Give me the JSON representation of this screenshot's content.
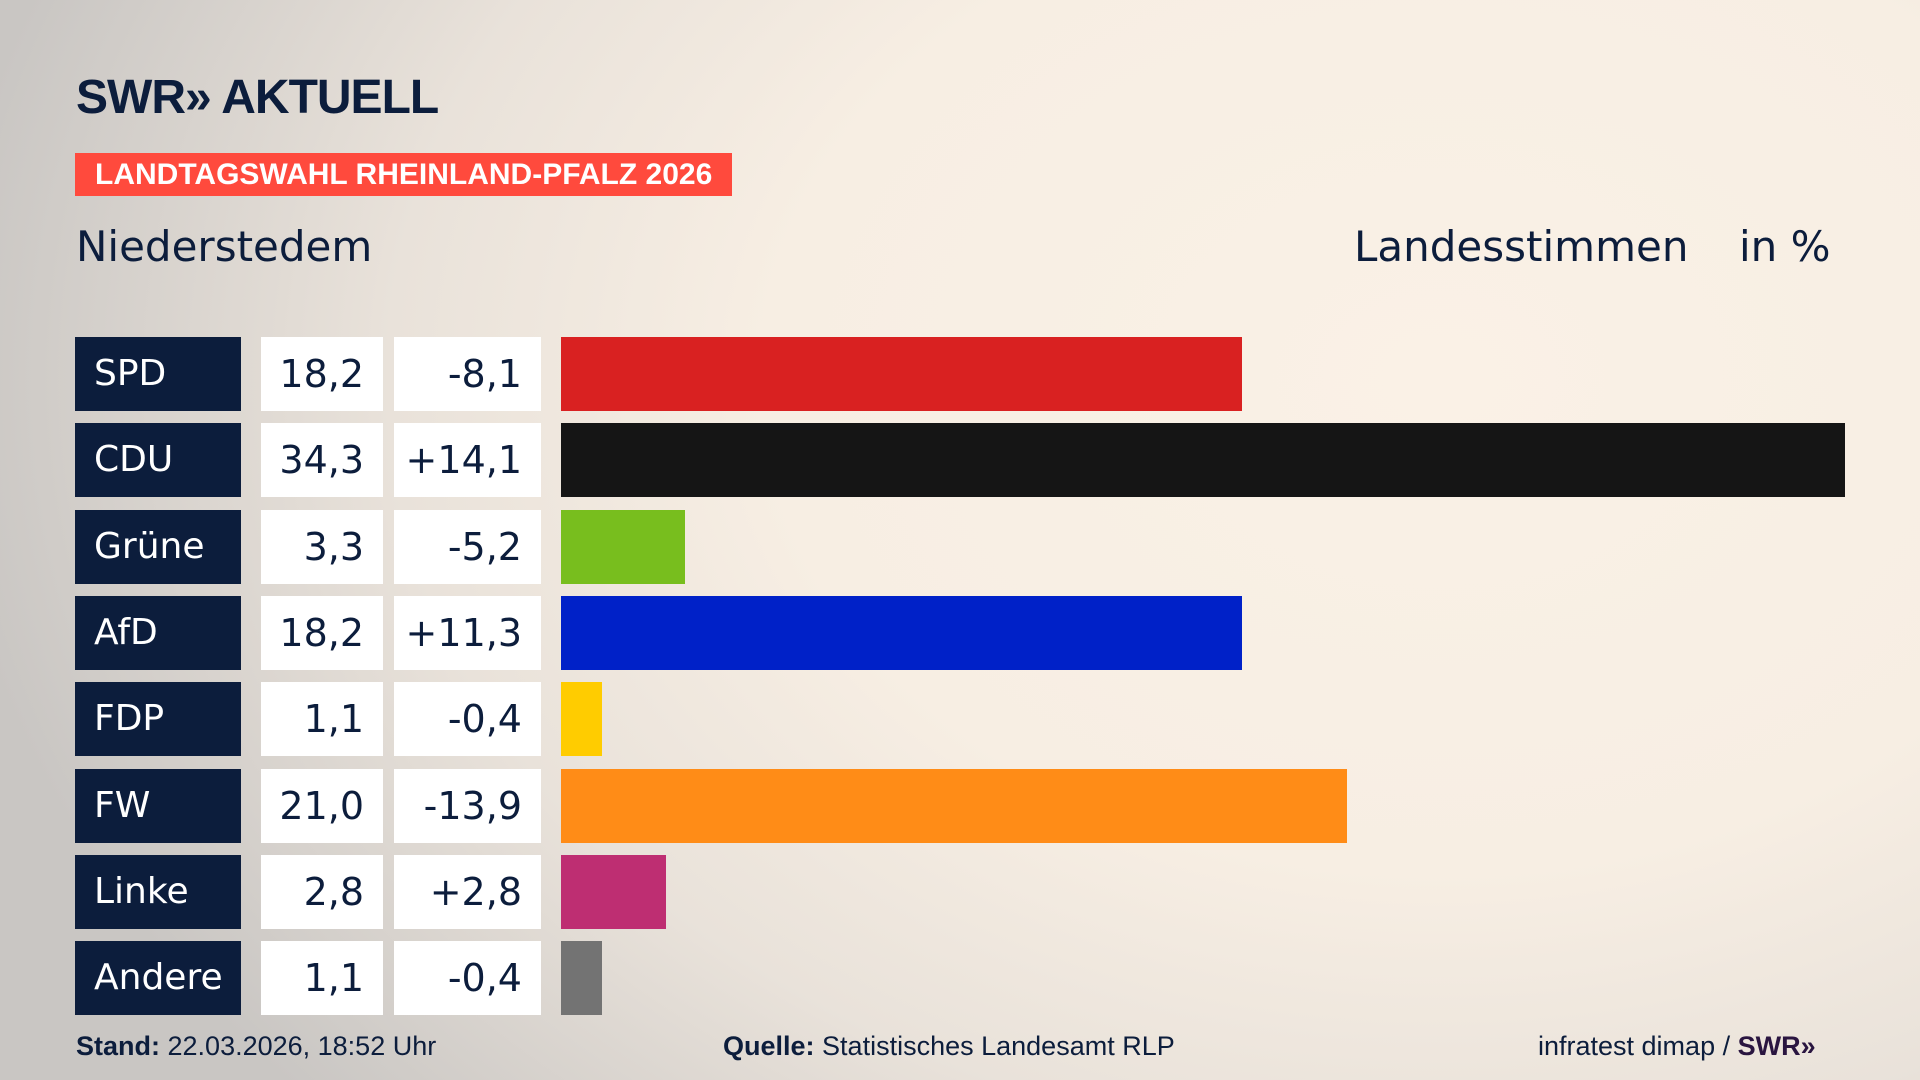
{
  "header": {
    "logo": "SWR» AKTUELL",
    "banner": "LANDTAGSWAHL RHEINLAND-PFALZ 2026",
    "place": "Niederstedem",
    "measure": "Landesstimmen",
    "unit": "in %"
  },
  "chart_data": {
    "type": "bar",
    "orientation": "horizontal",
    "categories": [
      "SPD",
      "CDU",
      "Grüne",
      "AfD",
      "FDP",
      "FW",
      "Linke",
      "Andere"
    ],
    "values": [
      18.2,
      34.3,
      3.3,
      18.2,
      1.1,
      21.0,
      2.8,
      1.1
    ],
    "value_labels": [
      "18,2",
      "34,3",
      "3,3",
      "18,2",
      "1,1",
      "21,0",
      "2,8",
      "1,1"
    ],
    "diff_labels": [
      "-8,1",
      "+14,1",
      "-5,2",
      "+11,3",
      "-0,4",
      "-13,9",
      "+2,8",
      "-0,4"
    ],
    "colors": [
      "#d92121",
      "#151515",
      "#78be1e",
      "#0021c8",
      "#ffcc00",
      "#ff8c17",
      "#be2e72",
      "#737373"
    ],
    "xlim": [
      0,
      34.3
    ],
    "grid": false
  },
  "footer": {
    "stand_label": "Stand:",
    "stand_value": "22.03.2026, 18:52 Uhr",
    "source_label": "Quelle:",
    "source_value": "Statistisches Landesamt RLP",
    "credit": "infratest dimap / ",
    "credit_logo": "SWR»"
  }
}
